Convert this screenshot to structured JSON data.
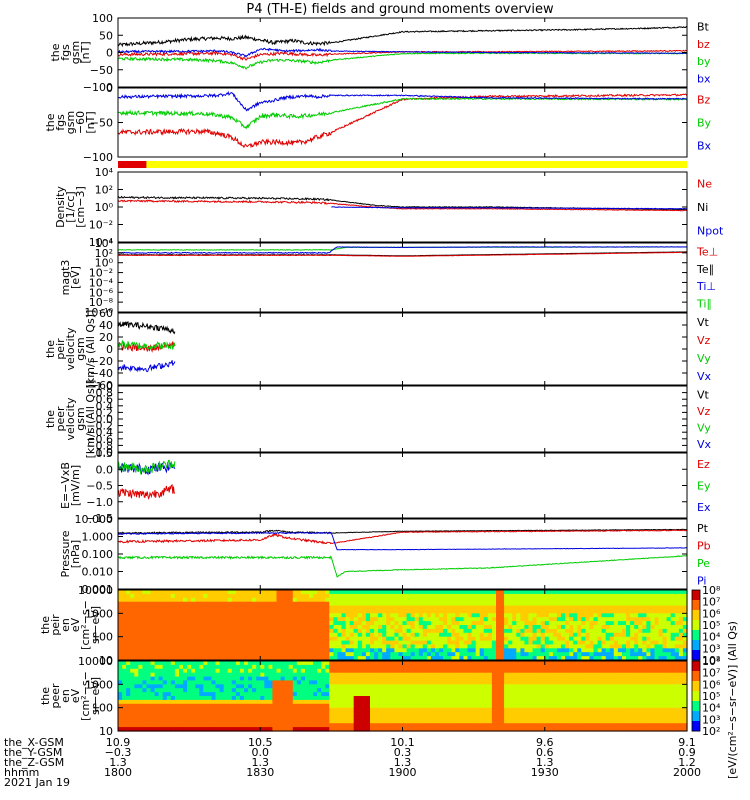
{
  "title": "P4 (TH-E) fields and ground moments overview",
  "colors": {
    "black": "#000000",
    "red": "#e00000",
    "green": "#00cc00",
    "blue": "#0000e0",
    "yellow": "#ffff00"
  },
  "chart_data": [
    {
      "type": "line",
      "ylabel": [
        "the",
        "fgs",
        "gsm",
        "[nT]"
      ],
      "ylim": [
        -100,
        100
      ],
      "yticks": [
        "100",
        "50",
        "0",
        "−50",
        "−100"
      ],
      "legend": [
        {
          "label": "Bt",
          "color": "#000000"
        },
        {
          "label": "bz",
          "color": "#e00000"
        },
        {
          "label": "by",
          "color": "#00cc00"
        },
        {
          "label": "bx",
          "color": "#0000e0"
        }
      ],
      "series": [
        {
          "name": "Bt",
          "color": "#000000",
          "x": [
            1800,
            1815,
            1825,
            1835,
            1840,
            1845,
            1850,
            1855,
            1858,
            1862,
            1866,
            1870,
            1875,
            1900,
            1930,
            1960,
            1985,
            2000
          ],
          "y": [
            22,
            30,
            38,
            42,
            40,
            44,
            36,
            28,
            32,
            34,
            28,
            26,
            28,
            60,
            63,
            66,
            70,
            74
          ],
          "noise": 5
        },
        {
          "name": "bz",
          "color": "#e00000",
          "x": [
            1800,
            1820,
            1830,
            1835,
            1840,
            1845,
            1850,
            1855,
            1858,
            1862,
            1866,
            1870,
            1875,
            1900,
            1930,
            2000
          ],
          "y": [
            -6,
            -4,
            -3,
            -2,
            -6,
            -20,
            -6,
            -4,
            -2,
            -4,
            -6,
            -8,
            -5,
            2,
            2,
            5
          ],
          "noise": 4
        },
        {
          "name": "by",
          "color": "#00cc00",
          "x": [
            1800,
            1820,
            1830,
            1835,
            1840,
            1845,
            1850,
            1855,
            1858,
            1862,
            1866,
            1870,
            1875,
            1900,
            1930,
            2000
          ],
          "y": [
            -18,
            -20,
            -22,
            -24,
            -30,
            -44,
            -28,
            -22,
            -22,
            -24,
            -26,
            -30,
            -22,
            -3,
            -2,
            -3
          ],
          "noise": 4
        },
        {
          "name": "bx",
          "color": "#0000e0",
          "x": [
            1800,
            1830,
            1835,
            1840,
            1845,
            1850,
            1855,
            1858,
            1862,
            1866,
            1870,
            1875,
            1900,
            1930,
            2000
          ],
          "y": [
            2,
            4,
            5,
            0,
            -10,
            10,
            8,
            4,
            5,
            6,
            8,
            4,
            2,
            0,
            -2
          ],
          "noise": 3
        }
      ]
    },
    {
      "type": "line",
      "ylabel": [
        "the",
        "fgs",
        "gsm",
        "−60",
        "[nT]"
      ],
      "ylim": [
        -120,
        20
      ],
      "yticks": [
        "0",
        "−50",
        "−100"
      ],
      "legend": [
        {
          "label": "Bz",
          "color": "#e00000"
        },
        {
          "label": "By",
          "color": "#00cc00"
        },
        {
          "label": "Bx",
          "color": "#0000e0"
        }
      ],
      "series": [
        {
          "name": "Bz",
          "color": "#e00000",
          "x": [
            1800,
            1830,
            1835,
            1840,
            1845,
            1850,
            1855,
            1858,
            1862,
            1866,
            1870,
            1875,
            1900,
            1930,
            2000
          ],
          "y": [
            -70,
            -68,
            -72,
            -80,
            -100,
            -90,
            -90,
            -90,
            -92,
            -88,
            -80,
            -70,
            -3,
            3,
            6
          ],
          "noise": 5
        },
        {
          "name": "By",
          "color": "#00cc00",
          "x": [
            1800,
            1830,
            1835,
            1840,
            1845,
            1850,
            1855,
            1858,
            1862,
            1866,
            1870,
            1875,
            1900,
            1930,
            2000
          ],
          "y": [
            -30,
            -32,
            -35,
            -40,
            -60,
            -38,
            -34,
            -36,
            -38,
            -36,
            -34,
            -30,
            -2,
            -2,
            -3
          ],
          "noise": 4
        },
        {
          "name": "Bx",
          "color": "#0000e0",
          "x": [
            1800,
            1830,
            1835,
            1840,
            1845,
            1850,
            1855,
            1858,
            1862,
            1866,
            1870,
            1875,
            1900,
            1930,
            2000
          ],
          "y": [
            2,
            4,
            5,
            10,
            -25,
            -10,
            -5,
            0,
            2,
            4,
            2,
            5,
            5,
            0,
            -2
          ],
          "noise": 3
        }
      ]
    },
    {
      "type": "bar",
      "segments": [
        {
          "from": 1800,
          "to": 1810,
          "color": "#e00000"
        },
        {
          "from": 1810,
          "to": 2000,
          "color": "#ffff00"
        }
      ]
    },
    {
      "type": "line",
      "ylabel": [
        "Density",
        "[1/cc]",
        "[cm−3]"
      ],
      "yscale": "log",
      "ylim": [
        -4,
        4
      ],
      "yticks": [
        "10⁴",
        "10²",
        "10⁰",
        "10⁻²",
        "10⁻⁴"
      ],
      "legend": [
        {
          "label": "Ne",
          "color": "#e00000"
        },
        {
          "label": "Ni",
          "color": "#000000"
        },
        {
          "label": "Npot",
          "color": "#0000e0"
        }
      ],
      "series": [
        {
          "name": "Ni",
          "color": "#000000",
          "x": [
            1800,
            1850,
            1870,
            1875,
            1890,
            1900,
            1930,
            2000
          ],
          "y": [
            1.1,
            1.0,
            0.9,
            0.8,
            0.2,
            0.0,
            0.0,
            -0.3
          ],
          "noise": 0.1
        },
        {
          "name": "Ne",
          "color": "#e00000",
          "x": [
            1800,
            1850,
            1870,
            1875,
            1890,
            1900,
            1930,
            2000
          ],
          "y": [
            0.7,
            0.6,
            0.5,
            0.4,
            0.0,
            -0.2,
            -0.2,
            -0.4
          ],
          "noise": 0.1
        },
        {
          "name": "Npot",
          "color": "#0000e0",
          "x": [
            1875,
            1900,
            1930,
            2000
          ],
          "y": [
            0.0,
            -0.1,
            -0.1,
            -0.2
          ],
          "noise": 0.08
        }
      ]
    },
    {
      "type": "line",
      "ylabel": [
        "magt3",
        "[eV]"
      ],
      "yscale": "log",
      "ylim": [
        -10,
        4
      ],
      "yticks": [
        "10⁴",
        "10²",
        "10⁰",
        "10⁻²",
        "10⁻⁴",
        "10⁻⁶",
        "10⁻⁸",
        "10⁻¹⁰"
      ],
      "legend": [
        {
          "label": "Te⊥",
          "color": "#e00000"
        },
        {
          "label": "Te∥",
          "color": "#000000"
        },
        {
          "label": "Ti⊥",
          "color": "#0000e0"
        },
        {
          "label": "Ti∥",
          "color": "#00cc00"
        }
      ],
      "series": [
        {
          "name": "Ti∥",
          "color": "#00cc00",
          "x": [
            1800,
            1875,
            1880,
            2000
          ],
          "y": [
            2.6,
            2.6,
            3.1,
            3.2
          ],
          "noise": 0.05
        },
        {
          "name": "Ti⊥",
          "color": "#0000e0",
          "x": [
            1800,
            1874,
            1877,
            1900,
            1930,
            2000
          ],
          "y": [
            2.0,
            2.0,
            3.2,
            3.1,
            3.2,
            3.2
          ],
          "noise": 0.1
        },
        {
          "name": "Te∥",
          "color": "#000000",
          "x": [
            1800,
            1875,
            1900,
            2000
          ],
          "y": [
            1.6,
            1.6,
            1.4,
            2.2
          ],
          "noise": 0.05
        },
        {
          "name": "Te⊥",
          "color": "#e00000",
          "x": [
            1800,
            1875,
            1900,
            2000
          ],
          "y": [
            1.5,
            1.5,
            1.3,
            2.1
          ],
          "noise": 0.05
        }
      ]
    },
    {
      "type": "line",
      "ylabel": [
        "the",
        "peir",
        "velocity",
        "gsm",
        "[km/s (All Qs)]"
      ],
      "ylim": [
        -60,
        60
      ],
      "yticks": [
        "60",
        "40",
        "20",
        "0",
        "−20",
        "−40",
        "−60"
      ],
      "legend": [
        {
          "label": "Vt",
          "color": "#000000"
        },
        {
          "label": "Vz",
          "color": "#e00000"
        },
        {
          "label": "Vy",
          "color": "#00cc00"
        },
        {
          "label": "Vx",
          "color": "#0000e0"
        }
      ],
      "series": [
        {
          "name": "Vt",
          "color": "#000000",
          "x": [
            1800,
            1810,
            1815,
            1820
          ],
          "y": [
            42,
            38,
            35,
            30
          ],
          "noise": 5
        },
        {
          "name": "Vz",
          "color": "#e00000",
          "x": [
            1800,
            1810,
            1815,
            1820
          ],
          "y": [
            5,
            0,
            4,
            8
          ],
          "noise": 6
        },
        {
          "name": "Vy",
          "color": "#00cc00",
          "x": [
            1800,
            1810,
            1815,
            1820
          ],
          "y": [
            8,
            5,
            6,
            4
          ],
          "noise": 6
        },
        {
          "name": "Vx",
          "color": "#0000e0",
          "x": [
            1800,
            1810,
            1815,
            1820
          ],
          "y": [
            -30,
            -33,
            -28,
            -22
          ],
          "noise": 5
        }
      ]
    },
    {
      "type": "line",
      "ylabel": [
        "the",
        "peer",
        "velocity",
        "gsm",
        "[km/s (All Qs)]"
      ],
      "ylim": [
        -1,
        1
      ],
      "yticks": [
        "1.0",
        "0.8",
        "0.6",
        "0.4",
        "0.2",
        "0.0",
        "−0.2",
        "−0.4",
        "−0.6",
        "−0.8",
        "−1.0"
      ],
      "legend": [
        {
          "label": "Vt",
          "color": "#000000"
        },
        {
          "label": "Vz",
          "color": "#e00000"
        },
        {
          "label": "Vy",
          "color": "#00cc00"
        },
        {
          "label": "Vx",
          "color": "#0000e0"
        }
      ],
      "series": []
    },
    {
      "type": "line",
      "ylabel": [
        "E=−VxB",
        "[mV/m]"
      ],
      "ylim": [
        -1.5,
        0.5
      ],
      "yticks": [
        "0.5",
        "0.0",
        "−0.5",
        "−1.0",
        "−1.5"
      ],
      "legend": [
        {
          "label": "Ez",
          "color": "#e00000"
        },
        {
          "label": "Ey",
          "color": "#00cc00"
        },
        {
          "label": "Ex",
          "color": "#0000e0"
        }
      ],
      "series": [
        {
          "name": "Ex",
          "color": "#0000e0",
          "x": [
            1800,
            1810,
            1820
          ],
          "y": [
            0.05,
            0.0,
            0.1
          ],
          "noise": 0.15
        },
        {
          "name": "Ey",
          "color": "#00cc00",
          "x": [
            1800,
            1810,
            1820
          ],
          "y": [
            0.1,
            0.0,
            0.2
          ],
          "noise": 0.15
        },
        {
          "name": "Ez",
          "color": "#e00000",
          "x": [
            1800,
            1810,
            1820
          ],
          "y": [
            -0.7,
            -0.8,
            -0.6
          ],
          "noise": 0.15
        }
      ]
    },
    {
      "type": "line",
      "ylabel": [
        "Pressure",
        "[nPa]"
      ],
      "yscale": "log",
      "ylim": [
        -3,
        1
      ],
      "yticks": [
        "10.000",
        "1.000",
        "0.100",
        "0.010",
        "0.001"
      ],
      "legend": [
        {
          "label": "Pt",
          "color": "#000000"
        },
        {
          "label": "Pb",
          "color": "#e00000"
        },
        {
          "label": "Pe",
          "color": "#00cc00"
        },
        {
          "label": "Pi",
          "color": "#0000e0"
        }
      ],
      "series": [
        {
          "name": "Pt",
          "color": "#000000",
          "x": [
            1800,
            1850,
            1855,
            1860,
            1875,
            1900,
            2000
          ],
          "y": [
            0.2,
            0.25,
            0.35,
            0.25,
            0.2,
            0.3,
            0.4
          ],
          "noise": 0.04
        },
        {
          "name": "Pb",
          "color": "#e00000",
          "x": [
            1800,
            1850,
            1855,
            1860,
            1875,
            1900,
            2000
          ],
          "y": [
            -0.3,
            -0.2,
            0.1,
            -0.1,
            -0.4,
            0.25,
            0.35
          ],
          "noise": 0.06
        },
        {
          "name": "Pi",
          "color": "#0000e0",
          "x": [
            1800,
            1850,
            1875,
            1877,
            1900,
            2000
          ],
          "y": [
            0.15,
            0.2,
            0.2,
            -0.75,
            -0.75,
            -0.65
          ],
          "noise": 0.03
        },
        {
          "name": "Pe",
          "color": "#00cc00",
          "x": [
            1800,
            1875,
            1877,
            1880,
            1900,
            1930,
            2000
          ],
          "y": [
            -1.2,
            -1.2,
            -2.3,
            -2.0,
            -1.9,
            -1.8,
            -1.1
          ],
          "noise": 0.06
        }
      ]
    },
    {
      "type": "heatmap",
      "ylabel": [
        "the",
        "peir",
        "en",
        "eV",
        "[cm²−s−",
        "sr−eV]"
      ],
      "ylim": [
        5,
        30000
      ],
      "yticks": [
        "10000",
        "1000",
        "100",
        "10"
      ],
      "colorbar": [
        "10⁸",
        "10⁷",
        "10⁶",
        "10⁵",
        "10⁴",
        "10³",
        "10²"
      ],
      "colorbar_label": "[eV/(cm²−s−sr−eV)] (All Qs)"
    },
    {
      "type": "heatmap",
      "ylabel": [
        "the",
        "peer",
        "en",
        "eV",
        "[cm²−s−",
        "sr−eV]"
      ],
      "ylim": [
        5,
        30000
      ],
      "yticks": [
        "10000",
        "1000",
        "100",
        "10"
      ],
      "colorbar": [
        "10⁸",
        "10⁷",
        "10⁶",
        "10⁵",
        "10⁴",
        "10³",
        "10²"
      ],
      "colorbar_label": "[eV/(cm²−s−sr−eV)] (All Qs)"
    }
  ],
  "xaxis": {
    "xlim": [
      1800,
      2000
    ],
    "rows": [
      {
        "label": "the_X-GSM",
        "values": [
          "10.9",
          "10.5",
          "10.1",
          "9.6",
          "9.1"
        ]
      },
      {
        "label": "the_Y-GSM",
        "values": [
          "−0.3",
          "0.0",
          "0.3",
          "0.6",
          "0.9"
        ]
      },
      {
        "label": "the_Z-GSM",
        "values": [
          "1.3",
          "1.3",
          "1.3",
          "1.3",
          "1.2"
        ]
      },
      {
        "label": "hhmm",
        "values": [
          "1800",
          "1830",
          "1900",
          "1930",
          "2000"
        ]
      }
    ],
    "date": "2021 Jan 19"
  }
}
